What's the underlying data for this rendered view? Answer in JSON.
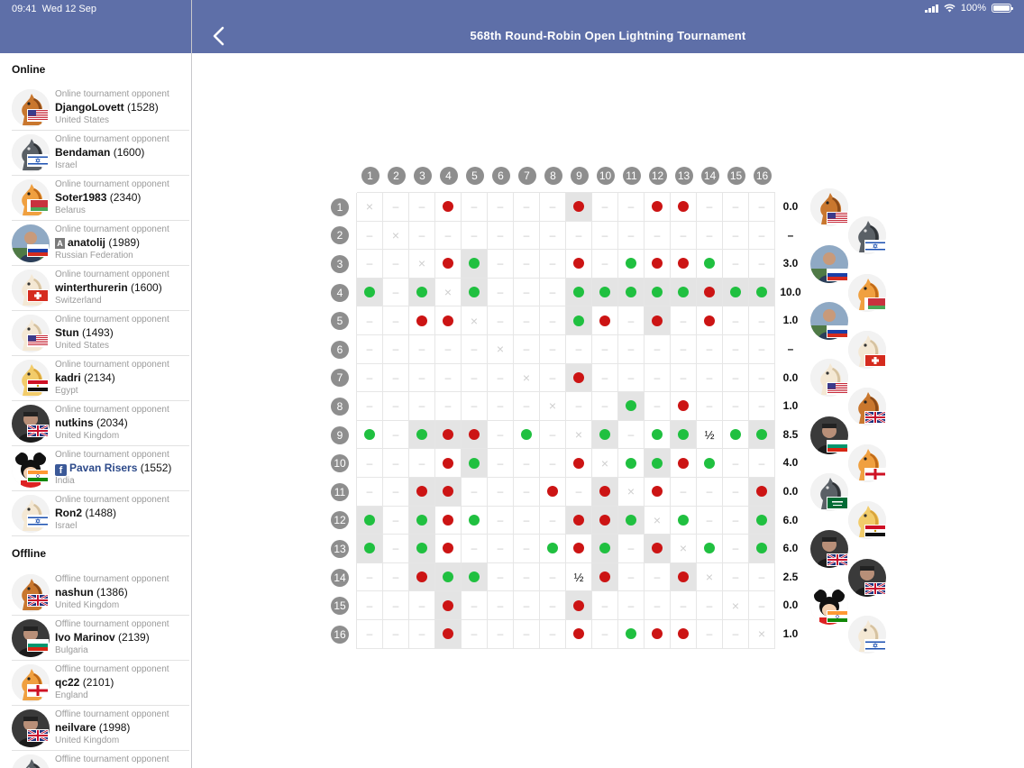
{
  "status": {
    "time": "09:41",
    "date": "Wed 12 Sep",
    "battery": "100%"
  },
  "header": {
    "title": "568th Round-Robin Open Lightning Tournament",
    "back_icon": "chevron-left-icon"
  },
  "sidebar": {
    "online_title": "Online",
    "offline_title": "Offline",
    "online": [
      {
        "role": "Online tournament opponent",
        "name": "DjangoLovett",
        "rating": "(1528)",
        "country": "United States",
        "avatar": "knight-brown",
        "flag": "us"
      },
      {
        "role": "Online tournament opponent",
        "name": "Bendaman",
        "rating": "(1600)",
        "country": "Israel",
        "avatar": "knight-dark",
        "flag": "il"
      },
      {
        "role": "Online tournament opponent",
        "name": "Soter1983",
        "rating": "(2340)",
        "country": "Belarus",
        "avatar": "knight-orange",
        "flag": "by"
      },
      {
        "role": "Online tournament opponent",
        "name": "anatolij",
        "rating": "(1989)",
        "country": "Russian Federation",
        "avatar": "photo",
        "flag": "ru",
        "badge": "A"
      },
      {
        "role": "Online tournament opponent",
        "name": "winterthurerin",
        "rating": "(1600)",
        "country": "Switzerland",
        "avatar": "knight-light",
        "flag": "ch"
      },
      {
        "role": "Online tournament opponent",
        "name": "Stun",
        "rating": "(1493)",
        "country": "United States",
        "avatar": "knight-light",
        "flag": "us"
      },
      {
        "role": "Online tournament opponent",
        "name": "kadri",
        "rating": "(2134)",
        "country": "Egypt",
        "avatar": "knight-yellow",
        "flag": "eg"
      },
      {
        "role": "Online tournament opponent",
        "name": "nutkins",
        "rating": "(2034)",
        "country": "United Kingdom",
        "avatar": "photo-dark",
        "flag": "gb"
      },
      {
        "role": "Online tournament opponent",
        "name": "Pavan Risers",
        "rating": "(1552)",
        "country": "India",
        "avatar": "mickey",
        "flag": "in",
        "facebook": true
      },
      {
        "role": "Online tournament opponent",
        "name": "Ron2",
        "rating": "(1488)",
        "country": "Israel",
        "avatar": "knight-light",
        "flag": "il"
      }
    ],
    "offline": [
      {
        "role": "Offline tournament opponent",
        "name": "nashun",
        "rating": "(1386)",
        "country": "United Kingdom",
        "avatar": "knight-brown",
        "flag": "gb"
      },
      {
        "role": "Offline tournament opponent",
        "name": "Ivo Marinov",
        "rating": "(2139)",
        "country": "Bulgaria",
        "avatar": "photo-dark",
        "flag": "bg"
      },
      {
        "role": "Offline tournament opponent",
        "name": "qc22",
        "rating": "(2101)",
        "country": "England",
        "avatar": "knight-orange",
        "flag": "en"
      },
      {
        "role": "Offline tournament opponent",
        "name": "neilvare",
        "rating": "(1998)",
        "country": "United Kingdom",
        "avatar": "photo-dark",
        "flag": "gb"
      },
      {
        "role": "Offline tournament opponent",
        "name": "",
        "rating": "",
        "country": "",
        "avatar": "knight-dark",
        "flag": ""
      }
    ]
  },
  "crosstable": {
    "columns": [
      "1",
      "2",
      "3",
      "4",
      "5",
      "6",
      "7",
      "8",
      "9",
      "10",
      "11",
      "12",
      "13",
      "14",
      "15",
      "16"
    ],
    "legend": {
      "W": "win (green)",
      "L": "loss (red)",
      "½": "draw",
      "X": "self",
      "-": "not played"
    },
    "rows": [
      {
        "num": "1",
        "results": [
          "X",
          "-",
          "-",
          "L",
          "-",
          "-",
          "-",
          "-",
          "L",
          "-",
          "-",
          "L",
          "L",
          "-",
          "-",
          "-"
        ],
        "score": "0.0",
        "highlight": [
          9
        ]
      },
      {
        "num": "2",
        "results": [
          "-",
          "X",
          "-",
          "-",
          "-",
          "-",
          "-",
          "-",
          "-",
          "-",
          "-",
          "-",
          "-",
          "-",
          "-",
          "-"
        ],
        "score": "–",
        "highlight": []
      },
      {
        "num": "3",
        "results": [
          "-",
          "-",
          "X",
          "L",
          "W",
          "-",
          "-",
          "-",
          "L",
          "-",
          "W",
          "L",
          "L",
          "W",
          "-",
          "-"
        ],
        "score": "3.0",
        "highlight": [
          5
        ]
      },
      {
        "num": "4",
        "results": [
          "W",
          "-",
          "W",
          "X",
          "W",
          "-",
          "-",
          "-",
          "W",
          "W",
          "W",
          "W",
          "W",
          "L",
          "W",
          "W"
        ],
        "score": "10.0",
        "highlight": [
          1,
          3,
          5,
          9,
          10,
          11,
          12,
          13,
          14,
          15,
          16
        ]
      },
      {
        "num": "5",
        "results": [
          "-",
          "-",
          "L",
          "L",
          "X",
          "-",
          "-",
          "-",
          "W",
          "L",
          "-",
          "L",
          "-",
          "L",
          "-",
          "-"
        ],
        "score": "1.0",
        "highlight": [
          9,
          12
        ]
      },
      {
        "num": "6",
        "results": [
          "-",
          "-",
          "-",
          "-",
          "-",
          "X",
          "-",
          "-",
          "-",
          "-",
          "-",
          "-",
          "-",
          "-",
          "-",
          "-"
        ],
        "score": "–",
        "highlight": []
      },
      {
        "num": "7",
        "results": [
          "-",
          "-",
          "-",
          "-",
          "-",
          "-",
          "X",
          "-",
          "L",
          "-",
          "-",
          "-",
          "-",
          "-",
          "-",
          "-"
        ],
        "score": "0.0",
        "highlight": [
          9
        ]
      },
      {
        "num": "8",
        "results": [
          "-",
          "-",
          "-",
          "-",
          "-",
          "-",
          "-",
          "X",
          "-",
          "-",
          "W",
          "-",
          "L",
          "-",
          "-",
          "-"
        ],
        "score": "1.0",
        "highlight": [
          11
        ]
      },
      {
        "num": "9",
        "results": [
          "W",
          "-",
          "W",
          "L",
          "L",
          "-",
          "W",
          "-",
          "X",
          "W",
          "-",
          "W",
          "W",
          "½",
          "W",
          "W"
        ],
        "score": "8.5",
        "highlight": [
          3,
          4,
          5,
          10,
          13,
          16
        ]
      },
      {
        "num": "10",
        "results": [
          "-",
          "-",
          "-",
          "L",
          "W",
          "-",
          "-",
          "-",
          "L",
          "X",
          "W",
          "W",
          "L",
          "W",
          "-",
          "-"
        ],
        "score": "4.0",
        "highlight": [
          5,
          12
        ]
      },
      {
        "num": "11",
        "results": [
          "-",
          "-",
          "L",
          "L",
          "-",
          "-",
          "-",
          "L",
          "-",
          "L",
          "X",
          "L",
          "-",
          "-",
          "-",
          "L"
        ],
        "score": "0.0",
        "highlight": [
          3,
          4,
          10,
          16
        ]
      },
      {
        "num": "12",
        "results": [
          "W",
          "-",
          "W",
          "L",
          "W",
          "-",
          "-",
          "-",
          "L",
          "L",
          "W",
          "X",
          "W",
          "-",
          "-",
          "W"
        ],
        "score": "6.0",
        "highlight": [
          1,
          3,
          9,
          10,
          11,
          16
        ]
      },
      {
        "num": "13",
        "results": [
          "W",
          "-",
          "W",
          "L",
          "-",
          "-",
          "-",
          "W",
          "L",
          "W",
          "-",
          "L",
          "X",
          "W",
          "-",
          "W"
        ],
        "score": "6.0",
        "highlight": [
          1,
          3,
          10,
          12,
          16
        ]
      },
      {
        "num": "14",
        "results": [
          "-",
          "-",
          "L",
          "W",
          "W",
          "-",
          "-",
          "-",
          "½",
          "L",
          "-",
          "-",
          "L",
          "X",
          "-",
          "-"
        ],
        "score": "2.5",
        "highlight": [
          3,
          4,
          5,
          10,
          13
        ]
      },
      {
        "num": "15",
        "results": [
          "-",
          "-",
          "-",
          "L",
          "-",
          "-",
          "-",
          "-",
          "L",
          "-",
          "-",
          "-",
          "-",
          "-",
          "X",
          "-"
        ],
        "score": "0.0",
        "highlight": [
          4,
          9
        ]
      },
      {
        "num": "16",
        "results": [
          "-",
          "-",
          "-",
          "L",
          "-",
          "-",
          "-",
          "-",
          "L",
          "-",
          "W",
          "L",
          "L",
          "-",
          "-",
          "X"
        ],
        "score": "1.0",
        "highlight": [
          4
        ]
      }
    ],
    "row_avatars": [
      {
        "avatar": "knight-brown",
        "flag": "us"
      },
      {
        "avatar": "knight-dark",
        "flag": "il"
      },
      {
        "avatar": "photo",
        "flag": "ru"
      },
      {
        "avatar": "knight-orange",
        "flag": "by"
      },
      {
        "avatar": "photo",
        "flag": "ru"
      },
      {
        "avatar": "knight-light",
        "flag": "ch"
      },
      {
        "avatar": "knight-light",
        "flag": "us"
      },
      {
        "avatar": "knight-brown",
        "flag": "gb"
      },
      {
        "avatar": "photo-dark",
        "flag": "bg"
      },
      {
        "avatar": "knight-orange",
        "flag": "en"
      },
      {
        "avatar": "knight-dark",
        "flag": "sa"
      },
      {
        "avatar": "knight-yellow",
        "flag": "eg"
      },
      {
        "avatar": "photo-dark",
        "flag": "gb"
      },
      {
        "avatar": "photo-dark",
        "flag": "gb"
      },
      {
        "avatar": "mickey",
        "flag": "in"
      },
      {
        "avatar": "knight-light",
        "flag": "il"
      }
    ]
  },
  "colors": {
    "header": "#5e6fa8",
    "win": "#20c040",
    "loss": "#cc1414",
    "number_badge": "#8e8e8e",
    "highlight": "#e4e4e4"
  }
}
